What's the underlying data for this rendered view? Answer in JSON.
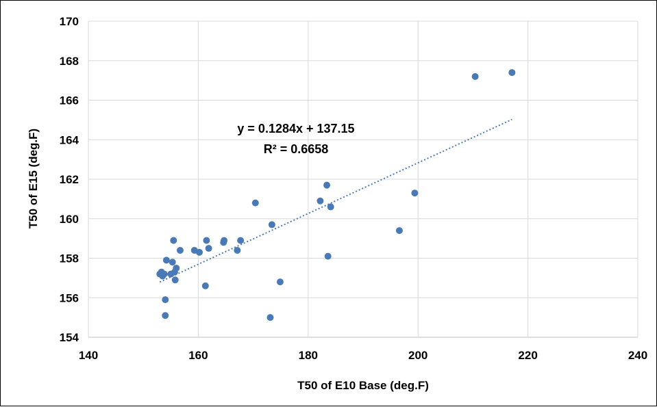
{
  "chart_data": {
    "type": "scatter",
    "title": "",
    "xlabel": "T50 of E10 Base (deg.F)",
    "ylabel": "T50 of E15 (deg.F)",
    "xlim": [
      140,
      240
    ],
    "ylim": [
      154,
      170
    ],
    "xticks": [
      140,
      160,
      180,
      200,
      220,
      240
    ],
    "yticks": [
      154,
      156,
      158,
      160,
      162,
      164,
      166,
      168,
      170
    ],
    "grid": true,
    "legend": "none",
    "marker_color": "#4a7ab5",
    "series": [
      {
        "points": [
          [
            153.0,
            157.2
          ],
          [
            153.3,
            157.3
          ],
          [
            153.5,
            157.1
          ],
          [
            153.8,
            157.2
          ],
          [
            154.0,
            155.9
          ],
          [
            154.0,
            155.1
          ],
          [
            154.2,
            157.9
          ],
          [
            155.0,
            157.2
          ],
          [
            155.3,
            157.8
          ],
          [
            155.5,
            158.9
          ],
          [
            155.7,
            157.3
          ],
          [
            155.8,
            156.9
          ],
          [
            156.0,
            157.5
          ],
          [
            156.7,
            158.4
          ],
          [
            159.3,
            158.4
          ],
          [
            160.2,
            158.3
          ],
          [
            161.3,
            156.6
          ],
          [
            161.5,
            158.9
          ],
          [
            161.9,
            158.5
          ],
          [
            164.6,
            158.8
          ],
          [
            164.7,
            158.9
          ],
          [
            167.1,
            158.4
          ],
          [
            167.7,
            158.9
          ],
          [
            170.4,
            160.8
          ],
          [
            173.1,
            155.0
          ],
          [
            173.4,
            159.7
          ],
          [
            174.9,
            156.8
          ],
          [
            182.2,
            160.9
          ],
          [
            183.4,
            161.7
          ],
          [
            183.6,
            158.1
          ],
          [
            184.1,
            160.6
          ],
          [
            196.6,
            159.4
          ],
          [
            199.4,
            161.3
          ],
          [
            210.4,
            167.2
          ],
          [
            217.1,
            167.4
          ]
        ]
      }
    ],
    "trendline": {
      "type": "linear",
      "slope": 0.1284,
      "intercept": 137.15,
      "x_range": [
        153.0,
        217.1
      ],
      "color": "#4a7ab5",
      "style": "dotted",
      "equation_label": "y = 0.1284x + 137.15",
      "r2_label": "R² = 0.6658"
    }
  }
}
